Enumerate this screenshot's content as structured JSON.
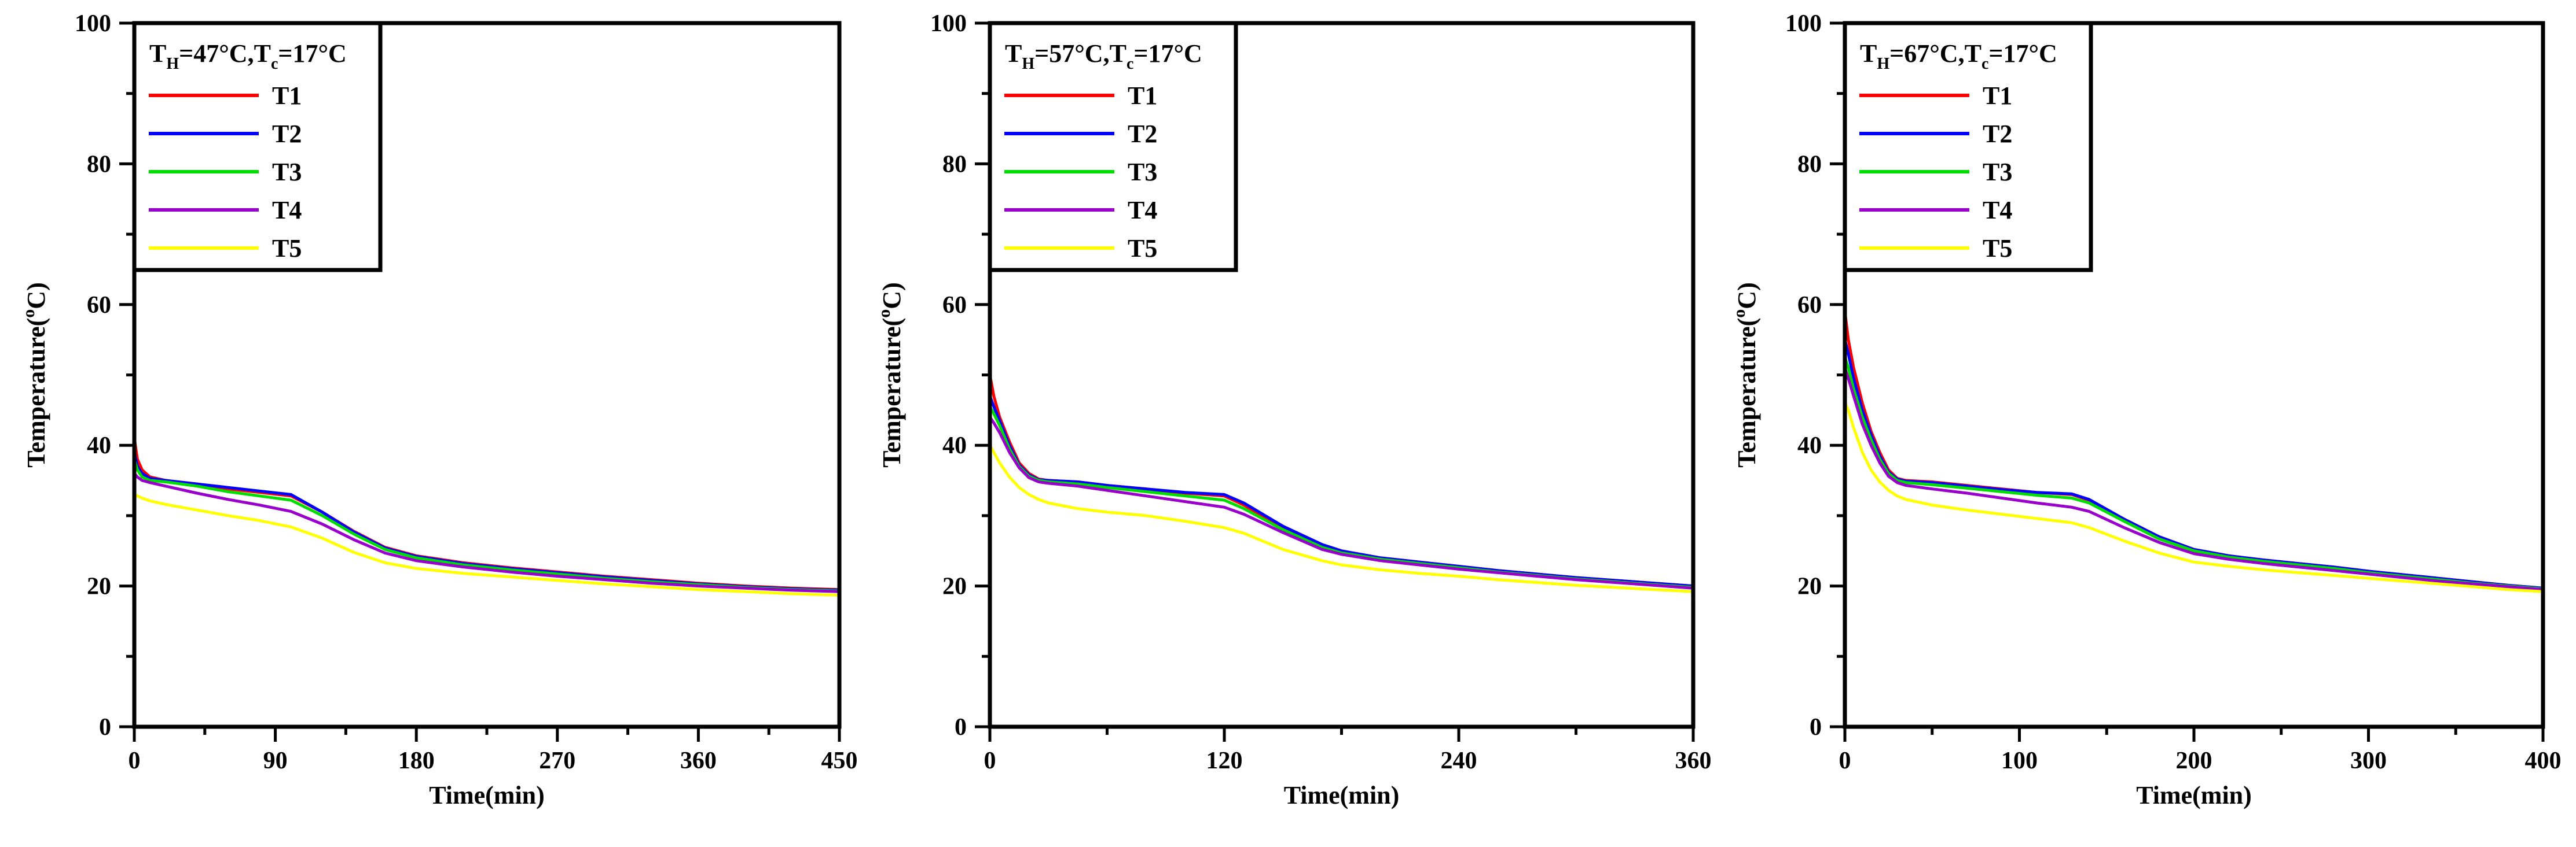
{
  "chart_data": [
    {
      "type": "line",
      "legend_title": {
        "main": "T",
        "sub": "H",
        "rest": "=47°C,T",
        "sub2": "c",
        "tail": "=17°C"
      },
      "xlabel": "Time(min)",
      "ylabel": {
        "main": "Temperature(",
        "sup": "o",
        "tail": "C)"
      },
      "xlim": [
        0,
        450
      ],
      "ylim": [
        0,
        100
      ],
      "xticks": [
        0,
        90,
        180,
        270,
        360,
        450
      ],
      "yticks": [
        0,
        20,
        40,
        60,
        80,
        100
      ],
      "legend_position": "top-left",
      "series": [
        {
          "name": "T1",
          "color": "#ff0000",
          "x": [
            0,
            2,
            5,
            10,
            20,
            40,
            60,
            80,
            100,
            120,
            140,
            160,
            180,
            210,
            240,
            270,
            300,
            330,
            360,
            390,
            420,
            450
          ],
          "y": [
            41,
            38,
            36.5,
            35.5,
            35,
            34.5,
            33.8,
            33.3,
            32.8,
            30.5,
            27.8,
            25.5,
            24.3,
            23.3,
            22.6,
            22,
            21.4,
            20.9,
            20.4,
            20,
            19.7,
            19.5
          ]
        },
        {
          "name": "T2",
          "color": "#0000ff",
          "x": [
            0,
            2,
            5,
            10,
            20,
            40,
            60,
            80,
            100,
            120,
            140,
            160,
            180,
            210,
            240,
            270,
            300,
            330,
            360,
            390,
            420,
            450
          ],
          "y": [
            39,
            37,
            36,
            35.3,
            35,
            34.5,
            34,
            33.5,
            33,
            30.5,
            27.7,
            25.4,
            24.2,
            23.2,
            22.5,
            21.9,
            21.3,
            20.8,
            20.3,
            19.9,
            19.6,
            19.4
          ]
        },
        {
          "name": "T3",
          "color": "#00dd00",
          "x": [
            0,
            2,
            5,
            10,
            20,
            40,
            60,
            80,
            100,
            120,
            140,
            160,
            180,
            210,
            240,
            270,
            300,
            330,
            360,
            390,
            420,
            450
          ],
          "y": [
            38,
            36.5,
            35.5,
            35,
            34.8,
            34.2,
            33.4,
            32.8,
            32.2,
            30,
            27.4,
            25.2,
            24,
            23,
            22.3,
            21.7,
            21.1,
            20.6,
            20.2,
            19.8,
            19.5,
            19.3
          ]
        },
        {
          "name": "T4",
          "color": "#9900cc",
          "x": [
            0,
            2,
            5,
            10,
            20,
            40,
            60,
            80,
            100,
            120,
            140,
            160,
            180,
            210,
            240,
            270,
            300,
            330,
            360,
            390,
            420,
            450
          ],
          "y": [
            36,
            35.5,
            35,
            34.7,
            34.2,
            33.2,
            32.3,
            31.5,
            30.6,
            28.8,
            26.6,
            24.7,
            23.6,
            22.7,
            22,
            21.4,
            20.9,
            20.4,
            20,
            19.7,
            19.4,
            19.2
          ]
        },
        {
          "name": "T5",
          "color": "#ffff00",
          "x": [
            0,
            2,
            5,
            10,
            20,
            40,
            60,
            80,
            100,
            120,
            140,
            160,
            180,
            210,
            240,
            270,
            300,
            330,
            360,
            390,
            420,
            450
          ],
          "y": [
            33,
            32.8,
            32.5,
            32.1,
            31.6,
            30.8,
            30,
            29.3,
            28.4,
            26.8,
            24.8,
            23.3,
            22.5,
            21.8,
            21.3,
            20.8,
            20.3,
            19.9,
            19.5,
            19.2,
            18.9,
            18.7
          ]
        }
      ]
    },
    {
      "type": "line",
      "legend_title": {
        "main": "T",
        "sub": "H",
        "rest": "=57°C,T",
        "sub2": "c",
        "tail": "=17°C"
      },
      "xlabel": "Time(min)",
      "ylabel": {
        "main": "Temperature(",
        "sup": "o",
        "tail": "C)"
      },
      "xlim": [
        0,
        360
      ],
      "ylim": [
        0,
        100
      ],
      "xticks": [
        0,
        120,
        240,
        360
      ],
      "yticks": [
        0,
        20,
        40,
        60,
        80,
        100
      ],
      "legend_position": "top-left",
      "series": [
        {
          "name": "T1",
          "color": "#ff0000",
          "x": [
            0,
            2,
            5,
            10,
            15,
            20,
            25,
            30,
            45,
            60,
            80,
            100,
            120,
            130,
            150,
            170,
            180,
            200,
            220,
            240,
            260,
            280,
            300,
            320,
            340,
            360
          ],
          "y": [
            50,
            47,
            44,
            40.5,
            37.5,
            36,
            35.2,
            35,
            34.8,
            34.3,
            33.8,
            33.2,
            32.8,
            31.5,
            28.3,
            25.8,
            25,
            24,
            23.4,
            22.8,
            22.2,
            21.7,
            21.2,
            20.8,
            20.4,
            20
          ]
        },
        {
          "name": "T2",
          "color": "#0000ff",
          "x": [
            0,
            2,
            5,
            10,
            15,
            20,
            25,
            30,
            45,
            60,
            80,
            100,
            120,
            130,
            150,
            170,
            180,
            200,
            220,
            240,
            260,
            280,
            300,
            320,
            340,
            360
          ],
          "y": [
            47,
            45.5,
            43.5,
            40,
            37.2,
            35.8,
            35.1,
            35,
            34.8,
            34.3,
            33.8,
            33.3,
            33,
            31.8,
            28.5,
            25.9,
            25,
            24,
            23.4,
            22.8,
            22.2,
            21.7,
            21.2,
            20.8,
            20.4,
            20
          ]
        },
        {
          "name": "T3",
          "color": "#00dd00",
          "x": [
            0,
            2,
            5,
            10,
            15,
            20,
            25,
            30,
            45,
            60,
            80,
            100,
            120,
            130,
            150,
            170,
            180,
            200,
            220,
            240,
            260,
            280,
            300,
            320,
            340,
            360
          ],
          "y": [
            45.5,
            44.5,
            42.8,
            39.5,
            37,
            35.6,
            35,
            34.8,
            34.5,
            34,
            33.4,
            32.8,
            32.2,
            31,
            28,
            25.5,
            24.7,
            23.8,
            23.2,
            22.6,
            22,
            21.5,
            21,
            20.6,
            20.2,
            19.8
          ]
        },
        {
          "name": "T4",
          "color": "#9900cc",
          "x": [
            0,
            2,
            5,
            10,
            15,
            20,
            25,
            30,
            45,
            60,
            80,
            100,
            120,
            130,
            150,
            170,
            180,
            200,
            220,
            240,
            260,
            280,
            300,
            320,
            340,
            360
          ],
          "y": [
            44,
            43.2,
            41.8,
            39,
            36.8,
            35.4,
            34.8,
            34.6,
            34.2,
            33.6,
            32.8,
            32,
            31.2,
            30.2,
            27.6,
            25.2,
            24.5,
            23.6,
            23,
            22.4,
            21.9,
            21.4,
            20.9,
            20.5,
            20.1,
            19.7
          ]
        },
        {
          "name": "T5",
          "color": "#ffff00",
          "x": [
            0,
            2,
            5,
            10,
            15,
            20,
            25,
            30,
            45,
            60,
            80,
            100,
            120,
            130,
            150,
            170,
            180,
            200,
            220,
            240,
            260,
            280,
            300,
            320,
            340,
            360
          ],
          "y": [
            40,
            39,
            37.5,
            35.5,
            34,
            33,
            32.3,
            31.8,
            31,
            30.5,
            30,
            29.2,
            28.3,
            27.5,
            25.2,
            23.6,
            23,
            22.3,
            21.8,
            21.4,
            20.9,
            20.5,
            20.1,
            19.8,
            19.5,
            19.2
          ]
        }
      ]
    },
    {
      "type": "line",
      "legend_title": {
        "main": "T",
        "sub": "H",
        "rest": "=67°C,T",
        "sub2": "c",
        "tail": "=17°C"
      },
      "xlabel": "Time(min)",
      "ylabel": {
        "main": "Temperature(",
        "sup": "o",
        "tail": "C)"
      },
      "xlim": [
        0,
        400
      ],
      "ylim": [
        0,
        100
      ],
      "xticks": [
        0,
        100,
        200,
        300,
        400
      ],
      "yticks": [
        0,
        20,
        40,
        60,
        80,
        100
      ],
      "legend_position": "top-left",
      "series": [
        {
          "name": "T1",
          "color": "#ff0000",
          "x": [
            0,
            2,
            5,
            10,
            15,
            20,
            25,
            30,
            35,
            50,
            70,
            90,
            110,
            130,
            140,
            160,
            180,
            200,
            220,
            240,
            260,
            280,
            300,
            320,
            340,
            360,
            380,
            400
          ],
          "y": [
            59,
            55,
            51,
            46,
            42,
            39,
            36.5,
            35.3,
            35,
            34.8,
            34.3,
            33.8,
            33.3,
            33,
            32.2,
            29.5,
            27,
            25.2,
            24.3,
            23.7,
            23.2,
            22.7,
            22.1,
            21.6,
            21.1,
            20.6,
            20.1,
            19.7
          ]
        },
        {
          "name": "T2",
          "color": "#0000ff",
          "x": [
            0,
            2,
            5,
            10,
            15,
            20,
            25,
            30,
            35,
            50,
            70,
            90,
            110,
            130,
            140,
            160,
            180,
            200,
            220,
            240,
            260,
            280,
            300,
            320,
            340,
            360,
            380,
            400
          ],
          "y": [
            55,
            53,
            49.5,
            45,
            41.5,
            38.5,
            36.2,
            35.2,
            34.9,
            34.7,
            34.2,
            33.7,
            33.3,
            33.1,
            32.3,
            29.5,
            27,
            25.2,
            24.3,
            23.7,
            23.2,
            22.7,
            22.1,
            21.6,
            21.1,
            20.6,
            20.1,
            19.7
          ]
        },
        {
          "name": "T3",
          "color": "#00dd00",
          "x": [
            0,
            2,
            5,
            10,
            15,
            20,
            25,
            30,
            35,
            50,
            70,
            90,
            110,
            130,
            140,
            160,
            180,
            200,
            220,
            240,
            260,
            280,
            300,
            320,
            340,
            360,
            380,
            400
          ],
          "y": [
            52.5,
            51,
            48,
            44,
            40.8,
            38,
            36,
            35,
            34.7,
            34.4,
            33.9,
            33.4,
            32.9,
            32.5,
            31.8,
            29.2,
            26.7,
            25,
            24.1,
            23.5,
            23,
            22.5,
            21.9,
            21.4,
            20.9,
            20.4,
            20,
            19.6
          ]
        },
        {
          "name": "T4",
          "color": "#9900cc",
          "x": [
            0,
            2,
            5,
            10,
            15,
            20,
            25,
            30,
            35,
            50,
            70,
            90,
            110,
            130,
            140,
            160,
            180,
            200,
            220,
            240,
            260,
            280,
            300,
            320,
            340,
            360,
            380,
            400
          ],
          "y": [
            51,
            49.5,
            47,
            43,
            40,
            37.5,
            35.6,
            34.7,
            34.3,
            33.8,
            33.2,
            32.5,
            31.8,
            31.2,
            30.6,
            28.3,
            26.2,
            24.6,
            23.8,
            23.2,
            22.7,
            22.2,
            21.7,
            21.2,
            20.7,
            20.3,
            19.9,
            19.5
          ]
        },
        {
          "name": "T5",
          "color": "#ffff00",
          "x": [
            0,
            2,
            5,
            10,
            15,
            20,
            25,
            30,
            35,
            50,
            70,
            90,
            110,
            130,
            140,
            160,
            180,
            200,
            220,
            240,
            260,
            280,
            300,
            320,
            340,
            360,
            380,
            400
          ],
          "y": [
            46,
            45,
            42.5,
            39,
            36.5,
            34.8,
            33.6,
            32.8,
            32.3,
            31.5,
            30.8,
            30.2,
            29.6,
            29,
            28.3,
            26.4,
            24.7,
            23.4,
            22.8,
            22.3,
            21.9,
            21.5,
            21.1,
            20.7,
            20.3,
            19.9,
            19.5,
            19.2
          ]
        }
      ]
    }
  ]
}
